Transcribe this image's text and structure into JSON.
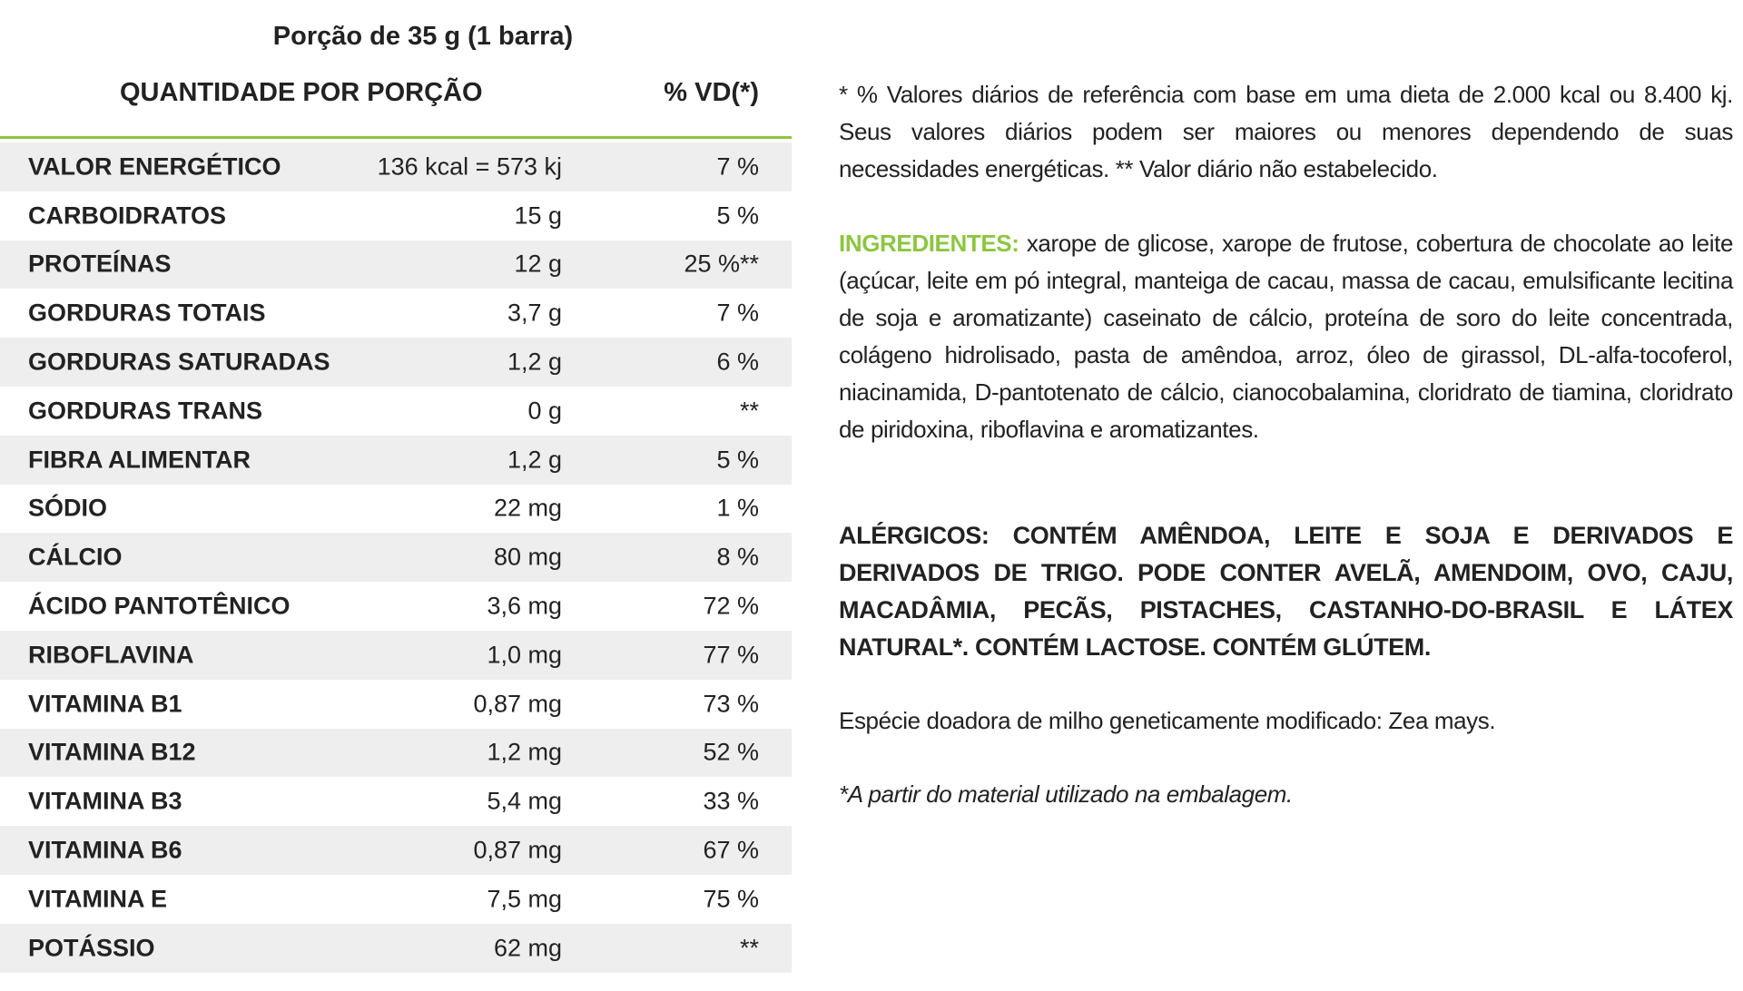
{
  "header": {
    "serving": "Porção de 35 g (1 barra)"
  },
  "table": {
    "header": {
      "nutrient": "QUANTIDADE POR PORÇÃO",
      "dv": "% VD(*)"
    },
    "rows": [
      [
        "VALOR ENERGÉTICO",
        "136 kcal = 573 kj",
        "7 %"
      ],
      [
        "CARBOIDRATOS",
        "15 g",
        "5 %"
      ],
      [
        "PROTEÍNAS",
        "12 g",
        "25 %**"
      ],
      [
        "GORDURAS TOTAIS",
        "3,7 g",
        "7 %"
      ],
      [
        "GORDURAS SATURADAS",
        "1,2 g",
        "6 %"
      ],
      [
        "GORDURAS TRANS",
        "0 g",
        "**"
      ],
      [
        "FIBRA ALIMENTAR",
        "1,2 g",
        "5 %"
      ],
      [
        "SÓDIO",
        "22 mg",
        "1 %"
      ],
      [
        "CÁLCIO",
        "80 mg",
        "8 %"
      ],
      [
        "ÁCIDO PANTOTÊNICO",
        "3,6 mg",
        "72 %"
      ],
      [
        "RIBOFLAVINA",
        "1,0 mg",
        "77 %"
      ],
      [
        "VITAMINA B1",
        "0,87 mg",
        "73 %"
      ],
      [
        "VITAMINA B12",
        "1,2 mg",
        "52 %"
      ],
      [
        "VITAMINA B3",
        "5,4 mg",
        "33 %"
      ],
      [
        "VITAMINA B6",
        "0,87 mg",
        "67 %"
      ],
      [
        "VITAMINA E",
        "7,5 mg",
        "75 %"
      ],
      [
        "POTÁSSIO",
        "62 mg",
        "**"
      ]
    ]
  },
  "notes": {
    "reference": "* % Valores diários de referência com base em uma dieta de 2.000 kcal ou 8.400 kj. Seus valores diários podem ser maiores ou menores dependendo de suas necessidades energéticas. ** Valor diário não estabelecido."
  },
  "ingredients": {
    "label": "INGREDIENTES:",
    "text": "xarope de glicose, xarope de frutose, cobertura de chocolate ao leite (açúcar, leite em pó integral, manteiga de cacau, massa de cacau, emulsificante lecitina de soja e aromatizante) caseinato de cálcio, proteína de soro do leite concentrada, colágeno hidrolisado, pasta de amêndoa, arroz, óleo de girassol, DL-alfa-tocoferol, niacinamida, D-pantotenato de cálcio, cianocobalamina, cloridrato de tiamina, cloridrato de piridoxina, riboflavina e aromatizantes."
  },
  "allergens": "ALÉRGICOS: CONTÉM AMÊNDOA, LEITE E SOJA E DERIVADOS E DERIVADOS DE TRIGO. PODE CONTER AVELÃ, AMENDOIM, OVO, CAJU, MACADÂMIA, PECÃS, PISTACHES, CASTANHO-DO-BRASIL E LÁTEX NATURAL*. CONTÉM LACTOSE. CONTÉM GLÚTEM.",
  "gmo": "Espécie doadora de milho geneticamente modificado: Zea mays.",
  "footnote": "*A partir do material utilizado na embalagem."
}
